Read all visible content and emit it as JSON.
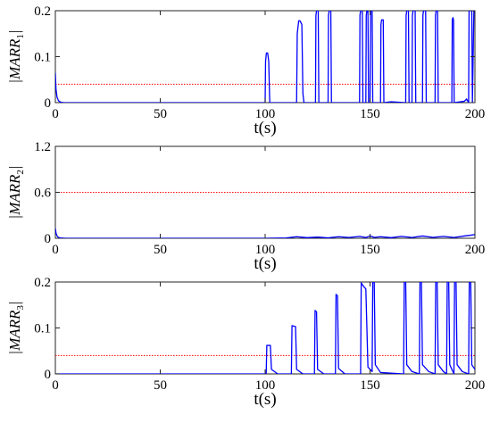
{
  "chart_data": [
    {
      "type": "line",
      "xlabel": "t(s)",
      "ylabel": "|MARR|",
      "ylabel_subscript": "1",
      "xlim": [
        0,
        200
      ],
      "ylim": [
        0,
        0.2
      ],
      "xticks": [
        0,
        50,
        100,
        150,
        200
      ],
      "yticks": [
        0,
        0.1,
        0.2
      ],
      "xtick_labels": [
        "0",
        "50",
        "100",
        "150",
        "200"
      ],
      "ytick_labels": [
        "0",
        "0.1",
        "0.2"
      ],
      "threshold": 0.04,
      "threshold_color": "#ff0000",
      "series_color": "#0000ff",
      "grid": false,
      "series": [
        {
          "x": [
            0,
            0.3,
            0.8,
            1.5,
            2.5,
            4,
            5,
            100,
            100.2,
            100.6,
            101.2,
            101.7,
            102.2,
            115,
            115.3,
            116,
            116.6,
            117.5,
            118,
            118.5,
            124,
            124.2,
            124.5,
            125.3,
            125.6,
            130,
            130.2,
            130.5,
            131.3,
            131.6,
            145,
            145.2,
            145.5,
            146.3,
            146.6,
            148,
            148.2,
            148.5,
            149,
            149.3,
            150,
            150.3,
            151,
            151.3,
            155,
            155.2,
            155.5,
            156.3,
            156.6,
            160,
            167,
            167.2,
            167.5,
            168.3,
            168.6,
            170,
            170.2,
            170.5,
            171.5,
            171.8,
            175,
            175.2,
            175.5,
            176.5,
            176.8,
            181,
            181.2,
            181.5,
            182.2,
            182.5,
            189,
            189.2,
            189.5,
            189.8,
            190.1,
            195,
            196,
            197,
            197.2,
            197.5,
            198.5,
            198.8,
            199.5,
            200
          ],
          "y": [
            0.065,
            0.03,
            0.012,
            0.004,
            0.001,
            0,
            0,
            0,
            0.09,
            0.108,
            0.108,
            0.09,
            0,
            0,
            0.15,
            0.178,
            0.178,
            0.17,
            0.02,
            0,
            0,
            0.19,
            0.2,
            0.2,
            0,
            0,
            0.19,
            0.2,
            0.2,
            0,
            0,
            0.19,
            0.2,
            0.2,
            0,
            0,
            0.19,
            0.2,
            0.2,
            0,
            0,
            0.2,
            0.2,
            0,
            0,
            0.17,
            0.18,
            0.18,
            0,
            0.002,
            0,
            0.19,
            0.2,
            0.2,
            0,
            0,
            0.19,
            0.2,
            0.2,
            0,
            0,
            0.19,
            0.2,
            0.2,
            0,
            0,
            0.19,
            0.2,
            0.2,
            0,
            0,
            0.18,
            0.185,
            0.18,
            0,
            0.003,
            0.008,
            0,
            0.2,
            0.2,
            0.2,
            0,
            0.2,
            0.2
          ]
        }
      ]
    },
    {
      "type": "line",
      "xlabel": "t(s)",
      "ylabel": "|MARR|",
      "ylabel_subscript": "2",
      "xlim": [
        0,
        200
      ],
      "ylim": [
        0,
        1.2
      ],
      "xticks": [
        0,
        50,
        100,
        150,
        200
      ],
      "yticks": [
        0,
        0.6,
        1.2
      ],
      "xtick_labels": [
        "0",
        "50",
        "100",
        "150",
        "200"
      ],
      "ytick_labels": [
        "0",
        "0.6",
        "1.2"
      ],
      "threshold": 0.6,
      "threshold_color": "#ff0000",
      "series_color": "#0000ff",
      "grid": false,
      "series": [
        {
          "x": [
            0,
            0.3,
            0.8,
            1.5,
            3,
            5,
            100,
            110,
            115,
            120,
            125,
            130,
            135,
            140,
            145,
            148,
            150,
            152,
            155,
            160,
            165,
            170,
            175,
            180,
            185,
            190,
            195,
            198,
            200
          ],
          "y": [
            0.13,
            0.07,
            0.03,
            0.01,
            0.002,
            0,
            0,
            0.004,
            0.02,
            0.008,
            0.015,
            0.006,
            0.02,
            0.01,
            0.025,
            0.01,
            0.03,
            0.012,
            0.02,
            0.008,
            0.025,
            0.01,
            0.03,
            0.012,
            0.025,
            0.01,
            0.03,
            0.04,
            0.05
          ]
        }
      ]
    },
    {
      "type": "line",
      "xlabel": "t(s)",
      "ylabel": "|MARR|",
      "ylabel_subscript": "3",
      "xlim": [
        0,
        200
      ],
      "ylim": [
        0,
        0.2
      ],
      "xticks": [
        0,
        50,
        100,
        150,
        200
      ],
      "yticks": [
        0,
        0.1,
        0.2
      ],
      "xtick_labels": [
        "0",
        "50",
        "100",
        "150",
        "200"
      ],
      "ytick_labels": [
        "0",
        "0.1",
        "0.2"
      ],
      "threshold": 0.04,
      "threshold_color": "#ff0000",
      "series_color": "#0000ff",
      "grid": false,
      "series": [
        {
          "x": [
            0,
            100.5,
            100.8,
            102.5,
            103,
            106,
            112.5,
            112.8,
            114.5,
            115,
            118,
            123.5,
            123.8,
            124.5,
            125,
            128,
            133.5,
            133.8,
            134.5,
            135,
            138,
            145.5,
            145.8,
            147,
            148,
            149,
            151,
            151.3,
            152,
            152.5,
            155,
            166,
            166.3,
            167,
            167.5,
            170,
            173.5,
            173.8,
            174.5,
            175,
            178,
            181,
            181.3,
            182,
            182.5,
            185,
            186.5,
            186.8,
            187.5,
            188,
            190,
            190.3,
            191,
            191.5,
            194,
            197,
            197.3,
            198,
            198.5,
            200
          ],
          "y": [
            0,
            0,
            0.062,
            0.062,
            0.01,
            0,
            0,
            0.105,
            0.103,
            0.01,
            0,
            0,
            0.138,
            0.135,
            0.01,
            0,
            0,
            0.173,
            0.17,
            0.012,
            0,
            0,
            0.198,
            0.19,
            0.185,
            0.015,
            0.005,
            0.2,
            0.2,
            0.02,
            0.003,
            0,
            0.2,
            0.2,
            0.02,
            0.005,
            0,
            0.2,
            0.2,
            0.02,
            0.005,
            0,
            0.2,
            0.2,
            0.02,
            0.005,
            0,
            0.2,
            0.2,
            0.02,
            0,
            0.2,
            0.2,
            0.02,
            0.005,
            0,
            0.2,
            0.2,
            0.02,
            0.01
          ]
        }
      ]
    }
  ]
}
